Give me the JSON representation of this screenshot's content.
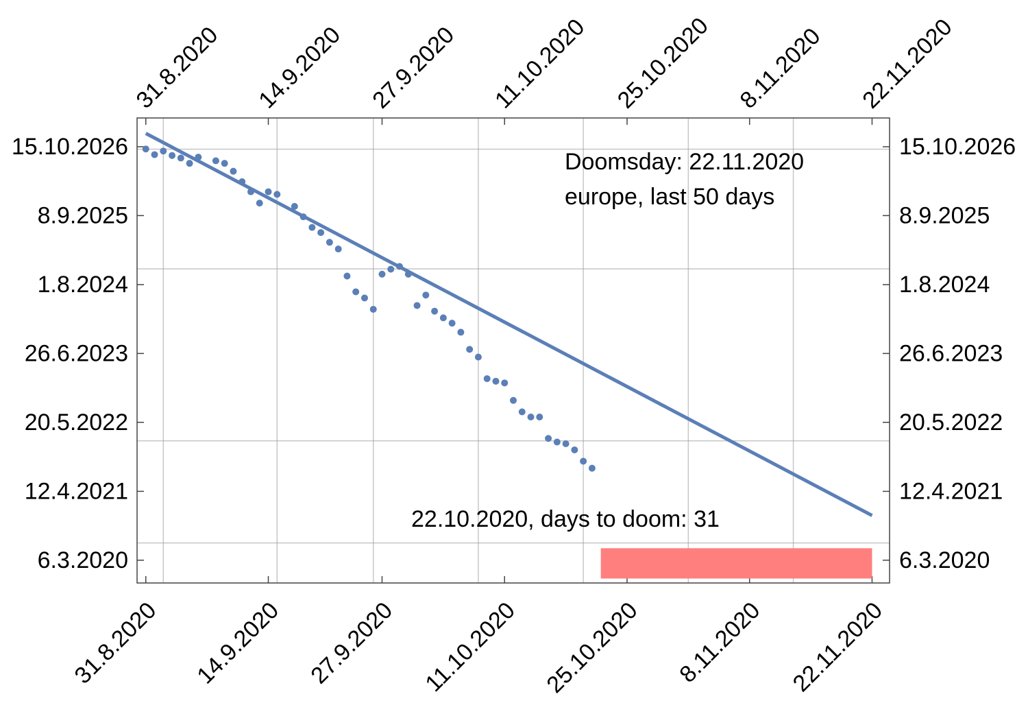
{
  "chart_data": {
    "type": "scatter",
    "title": "",
    "xlabel": "",
    "ylabel": "",
    "grid": true,
    "colors": {
      "points": "#5b7fb7",
      "fit_line": "#5b7fb7",
      "doom_bar": "#ff7f7f",
      "grid": "#999999",
      "frame": "#444444"
    },
    "x_ticks": [
      "31.8.2020",
      "14.9.2020",
      "27.9.2020",
      "11.10.2020",
      "25.10.2020",
      "8.11.2020",
      "22.11.2020"
    ],
    "y_ticks": [
      "6.3.2020",
      "12.4.2021",
      "20.5.2022",
      "26.6.2023",
      "1.8.2024",
      "8.9.2025",
      "15.10.2026"
    ],
    "xlim": [
      "2020-08-30",
      "2020-11-24"
    ],
    "ylim": [
      "2019-10-25",
      "2027-04-01"
    ],
    "x_grid": [
      "2020-09-02",
      "2020-09-15",
      "2020-09-26",
      "2020-10-08",
      "2020-10-20",
      "2020-11-01",
      "2020-11-13"
    ],
    "y_grid": [
      "2020-06-15",
      "2022-02-01",
      "2024-11-01",
      "2026-10-01"
    ],
    "series": [
      {
        "kind": "points",
        "x": [
          "2020-08-31",
          "2020-09-01",
          "2020-09-02",
          "2020-09-03",
          "2020-09-04",
          "2020-09-05",
          "2020-09-06",
          "2020-09-08",
          "2020-09-09",
          "2020-09-10",
          "2020-09-11",
          "2020-09-12",
          "2020-09-13",
          "2020-09-14",
          "2020-09-15",
          "2020-09-17",
          "2020-09-18",
          "2020-09-19",
          "2020-09-20",
          "2020-09-21",
          "2020-09-22",
          "2020-09-23",
          "2020-09-24",
          "2020-09-25",
          "2020-09-26",
          "2020-09-27",
          "2020-09-28",
          "2020-09-29",
          "2020-09-30",
          "2020-10-01",
          "2020-10-02",
          "2020-10-03",
          "2020-10-04",
          "2020-10-05",
          "2020-10-06",
          "2020-10-07",
          "2020-10-08",
          "2020-10-09",
          "2020-10-10",
          "2020-10-11",
          "2020-10-12",
          "2020-10-13",
          "2020-10-14",
          "2020-10-15",
          "2020-10-16",
          "2020-10-17",
          "2020-10-18",
          "2020-10-19",
          "2020-10-20",
          "2020-10-21"
        ],
        "y": [
          "2026-10-02",
          "2026-08-30",
          "2026-09-20",
          "2026-08-25",
          "2026-08-10",
          "2026-07-10",
          "2026-08-15",
          "2026-07-25",
          "2026-07-10",
          "2026-05-25",
          "2026-03-25",
          "2026-01-25",
          "2025-11-20",
          "2026-01-25",
          "2026-01-10",
          "2025-11-01",
          "2025-09-01",
          "2025-07-01",
          "2025-06-01",
          "2025-04-05",
          "2025-02-25",
          "2024-09-20",
          "2024-06-20",
          "2024-05-15",
          "2024-03-10",
          "2024-10-01",
          "2024-10-30",
          "2024-11-15",
          "2024-10-01",
          "2024-04-01",
          "2024-06-01",
          "2024-02-28",
          "2024-01-20",
          "2023-12-20",
          "2023-10-28",
          "2023-07-20",
          "2023-06-05",
          "2023-01-30",
          "2023-01-15",
          "2023-01-05",
          "2022-09-25",
          "2022-07-20",
          "2022-06-20",
          "2022-06-20",
          "2022-02-15",
          "2022-01-25",
          "2022-01-15",
          "2021-12-10",
          "2021-10-05",
          "2021-08-25"
        ]
      },
      {
        "kind": "fit_line",
        "x": [
          "2020-08-31",
          "2020-11-22"
        ],
        "y": [
          "2027-01-01",
          "2020-11-22"
        ]
      }
    ],
    "doom_bar": {
      "x_start": "2020-10-22",
      "x_end": "2020-11-22",
      "y_start": "2019-11-20",
      "y_end": "2020-05-15"
    },
    "annotations": [
      {
        "text": "Doomsday: 22.11.2020"
      },
      {
        "text": "europe, last 50 days"
      },
      {
        "text": "22.10.2020, days to doom: 31"
      }
    ]
  }
}
